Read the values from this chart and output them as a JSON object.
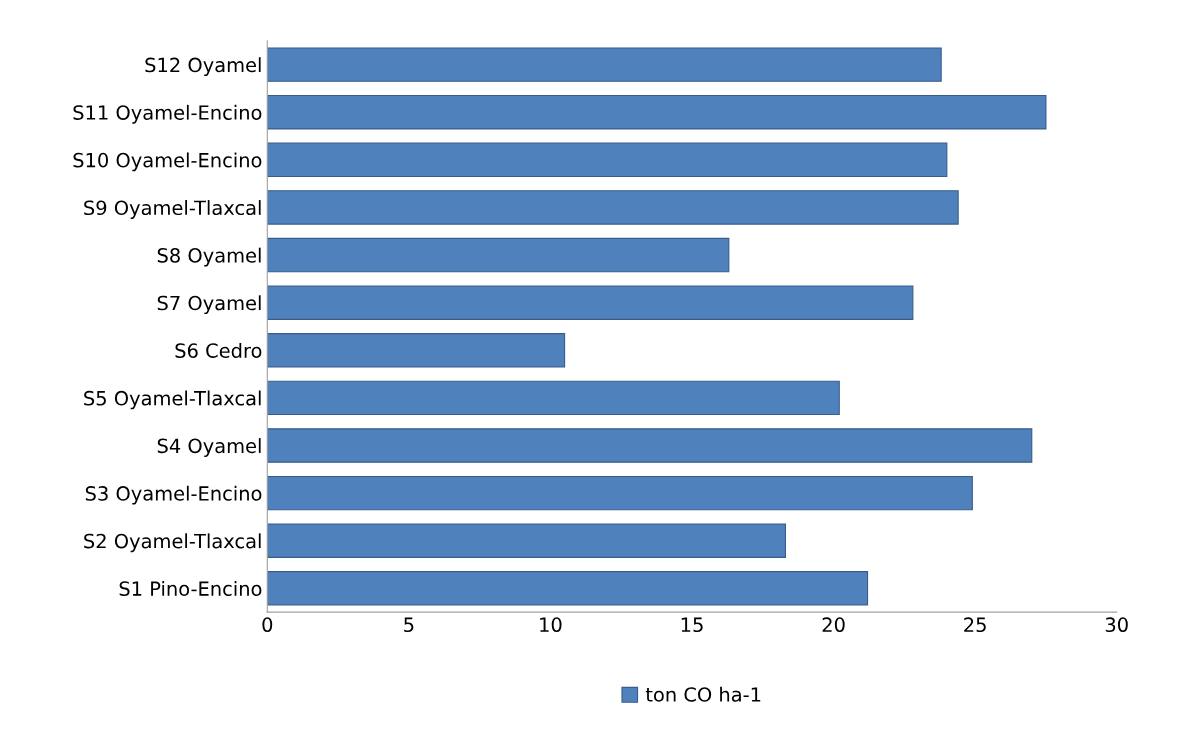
{
  "chart_data": {
    "type": "bar",
    "orientation": "horizontal",
    "categories": [
      "S12 Oyamel",
      "S11 Oyamel-Encino",
      "S10 Oyamel-Encino",
      "S9 Oyamel-Tlaxcal",
      "S8 Oyamel",
      "S7 Oyamel",
      "S6 Cedro",
      "S5 Oyamel-Tlaxcal",
      "S4 Oyamel",
      "S3 Oyamel-Encino",
      "S2 Oyamel-Tlaxcal",
      "S1 Pino-Encino"
    ],
    "series": [
      {
        "name": "ton CO ha-1",
        "color": "#4f81bd",
        "values": [
          23.8,
          27.5,
          24.0,
          24.4,
          16.3,
          22.8,
          10.5,
          20.2,
          27.0,
          24.9,
          18.3,
          21.2
        ]
      }
    ],
    "xlim": [
      0,
      30
    ],
    "xticks": [
      0,
      5,
      10,
      15,
      20,
      25,
      30
    ],
    "grid": false,
    "legend": "bottom"
  }
}
